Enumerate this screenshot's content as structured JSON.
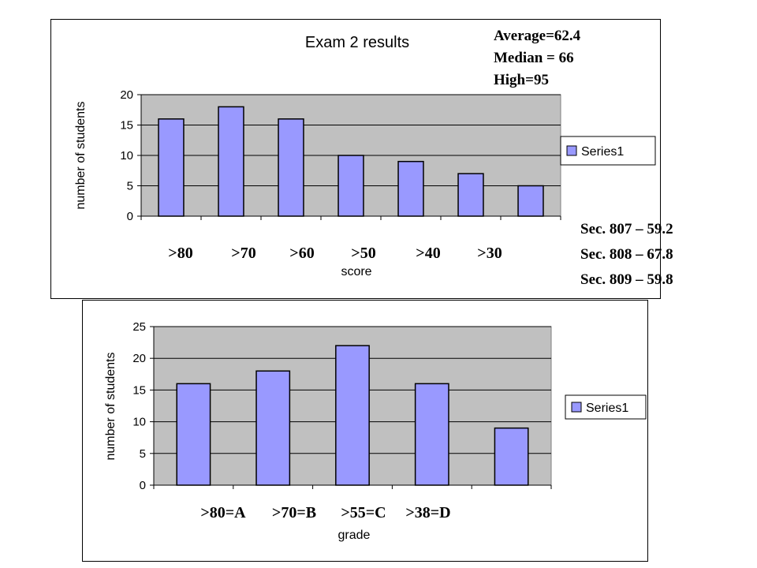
{
  "colors": {
    "plot_bg": "#c0c0c0",
    "bar_fill": "#9999ff",
    "bar_stroke": "#000000",
    "grid": "#000000"
  },
  "stats": {
    "average": "Average=62.4",
    "median": "Median = 66",
    "high": "High=95",
    "sec807": "Sec. 807 – 59.2",
    "sec808": "Sec. 808 – 67.8",
    "sec809": "Sec. 809 – 59.8"
  },
  "chart_data": [
    {
      "type": "bar",
      "title": "Exam 2 results",
      "xlabel": "score",
      "ylabel": "number of students",
      "categories": [
        ">80",
        ">70",
        ">60",
        ">50",
        ">40",
        ">30",
        ""
      ],
      "series": [
        {
          "name": "Series1",
          "values": [
            16,
            18,
            16,
            10,
            9,
            7,
            5
          ]
        }
      ],
      "ylim": [
        0,
        20
      ],
      "yticks": [
        0,
        5,
        10,
        15,
        20
      ],
      "grid": true,
      "legend": "right"
    },
    {
      "type": "bar",
      "title": "",
      "xlabel": "grade",
      "ylabel": "number of students",
      "categories": [
        ">80=A",
        ">70=B",
        ">55=C",
        ">38=D",
        ""
      ],
      "series": [
        {
          "name": "Series1",
          "values": [
            16,
            18,
            22,
            16,
            9
          ]
        }
      ],
      "ylim": [
        0,
        25
      ],
      "yticks": [
        0,
        5,
        10,
        15,
        20,
        25
      ],
      "grid": true,
      "legend": "right"
    }
  ]
}
